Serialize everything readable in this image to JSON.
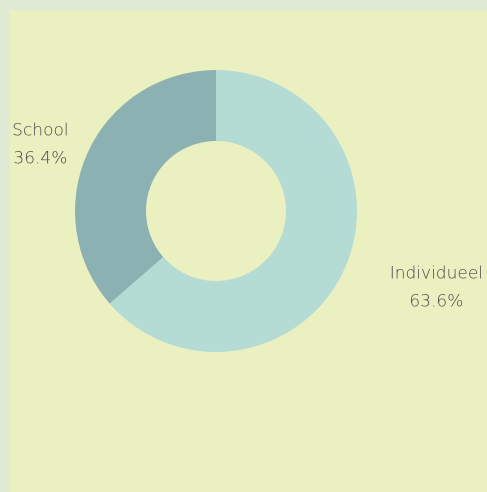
{
  "chart_data": {
    "type": "donut",
    "categories": [
      "Individueel",
      "School"
    ],
    "values": [
      63.6,
      36.4
    ],
    "value_labels": [
      "63.6%",
      "36.4%"
    ],
    "colors": [
      "#b5dbd5",
      "#8bb1b3"
    ]
  }
}
